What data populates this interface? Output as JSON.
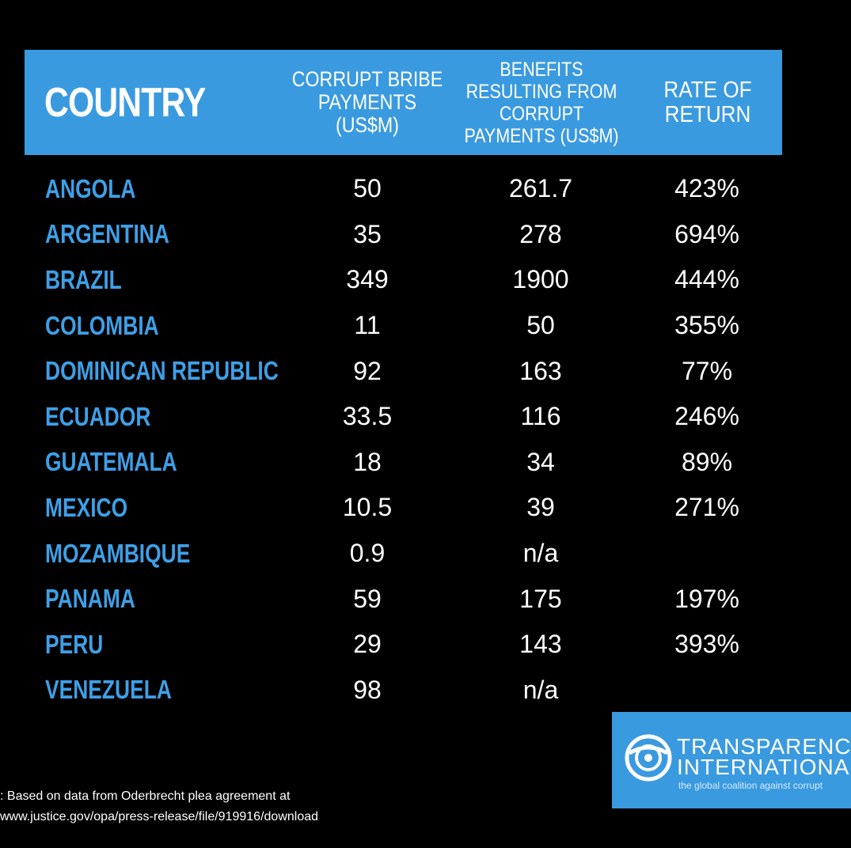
{
  "chart_data": {
    "type": "table",
    "columns": [
      "COUNTRY",
      "CORRUPT BRIBE\nPAYMENTS\n(US$M)",
      "BENEFITS\nRESULTING FROM\nCORRUPT\nPAYMENTS (US$M)",
      "RATE OF\nRETURN"
    ],
    "rows": [
      {
        "country": "ANGOLA",
        "bribe": "50",
        "benefits": "261.7",
        "rate": "423%"
      },
      {
        "country": "ARGENTINA",
        "bribe": "35",
        "benefits": "278",
        "rate": "694%"
      },
      {
        "country": "BRAZIL",
        "bribe": "349",
        "benefits": "1900",
        "rate": "444%"
      },
      {
        "country": "COLOMBIA",
        "bribe": "11",
        "benefits": "50",
        "rate": "355%"
      },
      {
        "country": "DOMINICAN REPUBLIC",
        "bribe": "92",
        "benefits": "163",
        "rate": "77%"
      },
      {
        "country": "ECUADOR",
        "bribe": "33.5",
        "benefits": "116",
        "rate": "246%"
      },
      {
        "country": "GUATEMALA",
        "bribe": "18",
        "benefits": "34",
        "rate": "89%"
      },
      {
        "country": "MEXICO",
        "bribe": "10.5",
        "benefits": "39",
        "rate": "271%"
      },
      {
        "country": "MOZAMBIQUE",
        "bribe": "0.9",
        "benefits": "n/a",
        "rate": ""
      },
      {
        "country": "PANAMA",
        "bribe": "59",
        "benefits": "175",
        "rate": "197%"
      },
      {
        "country": "PERU",
        "bribe": "29",
        "benefits": "143",
        "rate": "393%"
      },
      {
        "country": "VENEZUELA",
        "bribe": "98",
        "benefits": "n/a",
        "rate": ""
      }
    ]
  },
  "source": {
    "line1": ": Based on data from Oderbrecht plea agreement at",
    "line2": "www.justice.gov/opa/press-release/file/919916/download"
  },
  "logo": {
    "line1": "TRANSPARENC",
    "line2": "INTERNATIONA",
    "tagline": "the global coalition against corrupt",
    "icon": "transparency-international-logo-icon"
  },
  "colors": {
    "header_band": "#3a9ae0",
    "country_text": "#3f9fe6",
    "background": "#000000",
    "value_text": "#ffffff"
  }
}
